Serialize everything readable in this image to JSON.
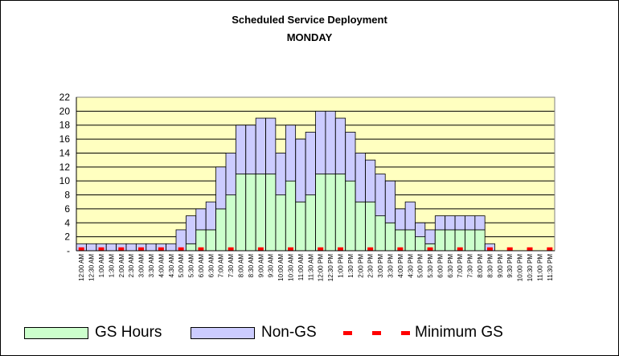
{
  "chart_data": {
    "type": "bar",
    "stacked": true,
    "title": "Scheduled Service Deployment",
    "subtitle": "MONDAY",
    "ylim": [
      0,
      22
    ],
    "yticks": [
      "-",
      "2",
      "4",
      "6",
      "8",
      "10",
      "12",
      "14",
      "16",
      "18",
      "20",
      "22"
    ],
    "grid": true,
    "legend_position": "bottom",
    "categories": [
      "12:00 AM",
      "12:30 AM",
      "1:00 AM",
      "1:30 AM",
      "2:00 AM",
      "2:30 AM",
      "3:00 AM",
      "3:30 AM",
      "4:00 AM",
      "4:30 AM",
      "5:00 AM",
      "5:30 AM",
      "6:00 AM",
      "6:30 AM",
      "7:00 AM",
      "7:30 AM",
      "8:00 AM",
      "8:30 AM",
      "9:00 AM",
      "9:30 AM",
      "10:00 AM",
      "10:30 AM",
      "11:00 AM",
      "11:30 AM",
      "12:00 PM",
      "12:30 PM",
      "1:00 PM",
      "1:30 PM",
      "2:00 PM",
      "2:30 PM",
      "3:00 PM",
      "3:30 PM",
      "4:00 PM",
      "4:30 PM",
      "5:00 PM",
      "5:30 PM",
      "6:00 PM",
      "6:30 PM",
      "7:00 PM",
      "7:30 PM",
      "8:00 PM",
      "8:30 PM",
      "9:00 PM",
      "9:30 PM",
      "10:00 PM",
      "10:30 PM",
      "11:00 PM",
      "11:30 PM"
    ],
    "series": [
      {
        "name": "GS Hours",
        "kind": "bar",
        "color": "#ccffcc",
        "values": [
          0,
          0,
          0,
          0,
          0,
          0,
          0,
          0,
          0,
          0,
          0,
          1,
          3,
          3,
          6,
          8,
          11,
          11,
          11,
          11,
          8,
          10,
          7,
          8,
          11,
          11,
          11,
          10,
          7,
          7,
          5,
          4,
          3,
          3,
          2,
          1,
          3,
          3,
          3,
          3,
          3,
          0,
          0,
          0,
          0,
          0,
          0,
          0
        ]
      },
      {
        "name": "Non-GS",
        "kind": "bar",
        "color": "#ccccff",
        "values": [
          1,
          1,
          1,
          1,
          1,
          1,
          1,
          1,
          1,
          1,
          3,
          4,
          3,
          4,
          6,
          6,
          7,
          7,
          8,
          8,
          6,
          8,
          9,
          9,
          9,
          9,
          8,
          7,
          7,
          6,
          6,
          6,
          3,
          4,
          2,
          2,
          2,
          2,
          2,
          2,
          2,
          1,
          0,
          0,
          0,
          0,
          0,
          0
        ]
      },
      {
        "name": "Minimum GS",
        "kind": "marker",
        "color": "#ff0000",
        "values": [
          0.2,
          null,
          0.2,
          null,
          0.2,
          null,
          0.2,
          null,
          0.2,
          null,
          0.2,
          null,
          0.2,
          null,
          null,
          0.2,
          null,
          null,
          0.2,
          null,
          null,
          0.2,
          null,
          null,
          0.2,
          null,
          0.2,
          null,
          null,
          0.2,
          null,
          null,
          0.2,
          null,
          null,
          0.2,
          null,
          null,
          0.2,
          null,
          null,
          0.2,
          null,
          0.2,
          null,
          0.2,
          null,
          0.2
        ]
      }
    ]
  }
}
